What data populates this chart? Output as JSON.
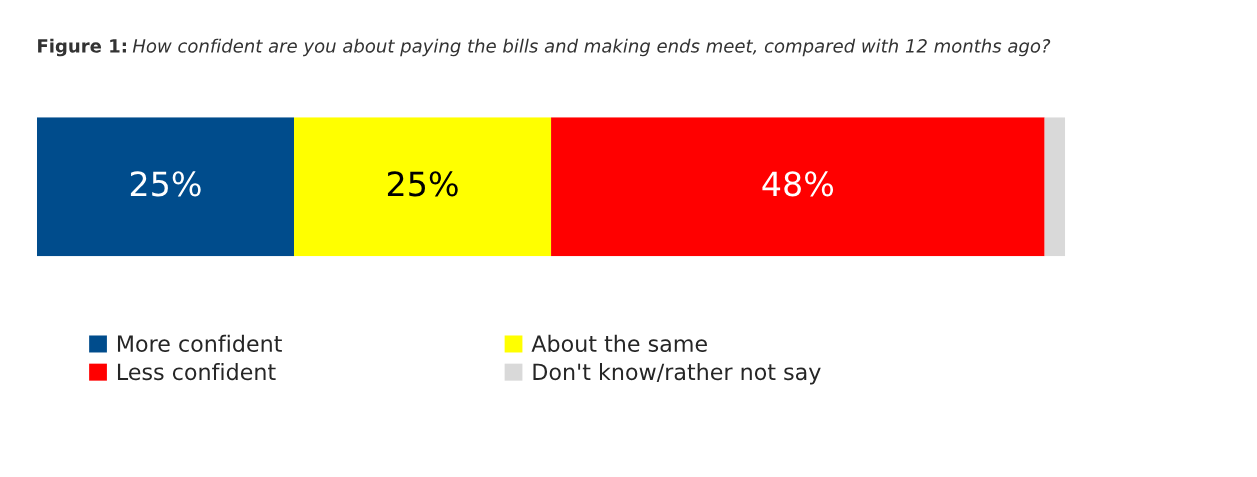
{
  "chart_data": {
    "type": "bar",
    "orientation": "horizontal",
    "stacked": true,
    "title": "Figure 1: How confident are you about paying the bills and making ends meet, compared with 12 months ago?",
    "categories": [
      null
    ],
    "xlim": [
      0,
      100
    ],
    "tick_labels": false,
    "legend": "bottom",
    "series": [
      {
        "name": "More confident",
        "color": "#004c8c",
        "values": [
          25
        ],
        "value_labels": [
          "25%"
        ]
      },
      {
        "name": "About the same",
        "color": "#ffff00",
        "values": [
          25
        ],
        "value_labels": [
          "25%"
        ]
      },
      {
        "name": "Less confident",
        "color": "#ff0000",
        "values": [
          48
        ],
        "value_labels": [
          "48%"
        ]
      },
      {
        "name": "Don't know/rather not say",
        "color": "#d9d9d9",
        "values": [
          2
        ],
        "value_labels": [
          null
        ]
      }
    ]
  }
}
